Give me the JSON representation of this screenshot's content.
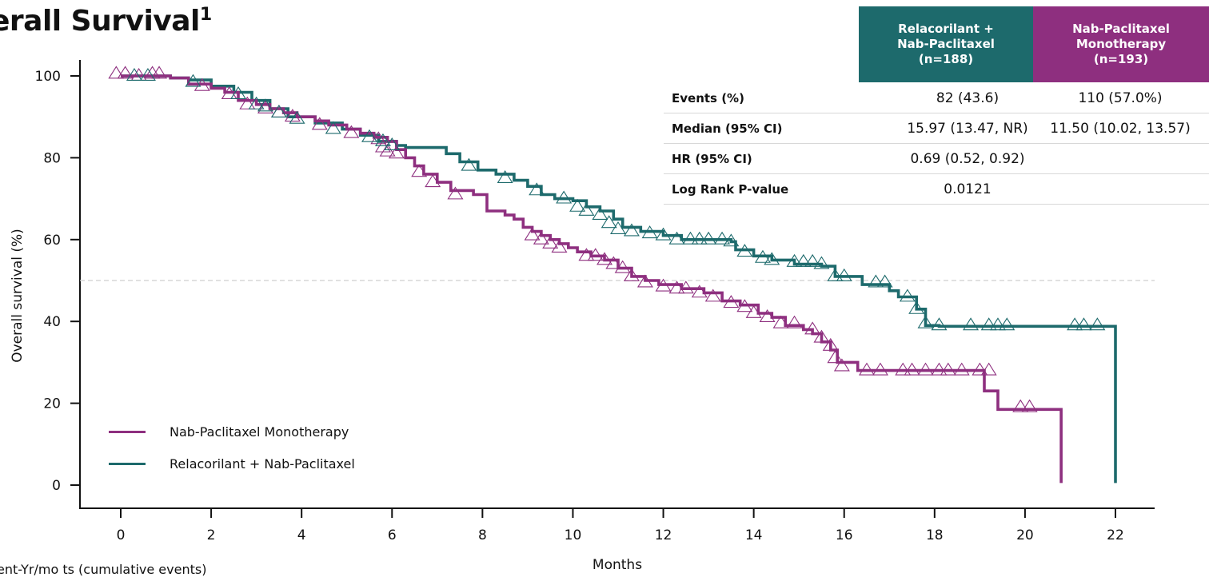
{
  "title": "erall Survival",
  "title_sup": "1",
  "footnote": "ent-Yr/mo ts (cumulative events)",
  "table": {
    "headers": [
      {
        "label": "Relacorilant +\nNab-Paclitaxel\n(n=188)",
        "color": "#1d6a6c"
      },
      {
        "label": "Nab-Paclitaxel\nMonotherapy\n(n=193)",
        "color": "#8e2f7f"
      }
    ],
    "rows": [
      {
        "label": "Events (%)",
        "v1": "82 (43.6)",
        "v2": "110 (57.0%)"
      },
      {
        "label": "Median (95% CI)",
        "v1": "15.97 (13.47, NR)",
        "v2": "11.50 (10.02, 13.57)"
      },
      {
        "label": "HR (95% CI)",
        "v1": "0.69 (0.52, 0.92)",
        "v2": ""
      },
      {
        "label": "Log Rank P-value",
        "v1": "0.0121",
        "v2": ""
      }
    ]
  },
  "legend": [
    {
      "label": "Nab-Paclitaxel Monotherapy",
      "color": "#8e2f7f"
    },
    {
      "label": "Relacorilant + Nab-Paclitaxel",
      "color": "#1d6a6c"
    }
  ],
  "chart_data": {
    "type": "line",
    "subtype": "kaplan-meier step",
    "xlabel": "Months",
    "ylabel": "Overall survival (%)",
    "xlim": [
      0,
      22
    ],
    "ylim": [
      0,
      100
    ],
    "xticks": [
      0,
      2,
      4,
      6,
      8,
      10,
      12,
      14,
      16,
      18,
      20,
      22
    ],
    "yticks": [
      0,
      20,
      40,
      60,
      80,
      100
    ],
    "reference_line_y": 50,
    "censor_marker": "open triangle",
    "series": [
      {
        "name": "Nab-Paclitaxel Monotherapy",
        "color": "#8e2f7f",
        "steps": [
          [
            0,
            100
          ],
          [
            1.1,
            99.5
          ],
          [
            1.5,
            98
          ],
          [
            2,
            97
          ],
          [
            2.3,
            96
          ],
          [
            2.6,
            94
          ],
          [
            3,
            93
          ],
          [
            3.3,
            92
          ],
          [
            3.6,
            91
          ],
          [
            3.9,
            90
          ],
          [
            4.3,
            89
          ],
          [
            4.6,
            88
          ],
          [
            5,
            87
          ],
          [
            5.3,
            86
          ],
          [
            5.6,
            85
          ],
          [
            5.9,
            84
          ],
          [
            6.1,
            82
          ],
          [
            6.3,
            80
          ],
          [
            6.5,
            78
          ],
          [
            6.7,
            76
          ],
          [
            7,
            74
          ],
          [
            7.3,
            72
          ],
          [
            7.8,
            71
          ],
          [
            8.1,
            67
          ],
          [
            8.5,
            66
          ],
          [
            8.7,
            65
          ],
          [
            8.9,
            63
          ],
          [
            9.1,
            62
          ],
          [
            9.3,
            61
          ],
          [
            9.5,
            60
          ],
          [
            9.7,
            59
          ],
          [
            9.9,
            58
          ],
          [
            10.1,
            57
          ],
          [
            10.4,
            56
          ],
          [
            10.7,
            55
          ],
          [
            11,
            53
          ],
          [
            11.3,
            51
          ],
          [
            11.6,
            50
          ],
          [
            11.9,
            49
          ],
          [
            12.4,
            48
          ],
          [
            12.9,
            47
          ],
          [
            13.3,
            45
          ],
          [
            13.7,
            44
          ],
          [
            14.1,
            42
          ],
          [
            14.4,
            41
          ],
          [
            14.7,
            39
          ],
          [
            15.1,
            38
          ],
          [
            15.3,
            37
          ],
          [
            15.5,
            35
          ],
          [
            15.7,
            33
          ],
          [
            15.85,
            30
          ],
          [
            16.3,
            28
          ],
          [
            19.1,
            28
          ],
          [
            19.1,
            23
          ],
          [
            19.4,
            18.5
          ],
          [
            20.8,
            18.5
          ],
          [
            20.8,
            0.5
          ]
        ],
        "censored": [
          [
            -0.1,
            100.5
          ],
          [
            0.1,
            100.5
          ],
          [
            0.4,
            100
          ],
          [
            0.7,
            100.5
          ],
          [
            0.85,
            100.5
          ],
          [
            1.8,
            97.5
          ],
          [
            2.4,
            95.5
          ],
          [
            2.8,
            93
          ],
          [
            3.2,
            92
          ],
          [
            3.5,
            91
          ],
          [
            3.8,
            90
          ],
          [
            4.4,
            88
          ],
          [
            5.1,
            86
          ],
          [
            5.7,
            84.5
          ],
          [
            5.8,
            82.5
          ],
          [
            5.9,
            81.5
          ],
          [
            6.1,
            81
          ],
          [
            6.6,
            76.5
          ],
          [
            6.9,
            74
          ],
          [
            7.4,
            71
          ],
          [
            9.1,
            61
          ],
          [
            9.3,
            60
          ],
          [
            9.5,
            59
          ],
          [
            9.7,
            58
          ],
          [
            10.3,
            56
          ],
          [
            10.5,
            56
          ],
          [
            10.7,
            55
          ],
          [
            10.9,
            54
          ],
          [
            11.1,
            53
          ],
          [
            11.3,
            51
          ],
          [
            11.6,
            49.5
          ],
          [
            12,
            48.5
          ],
          [
            12.3,
            48
          ],
          [
            12.5,
            48
          ],
          [
            12.8,
            47
          ],
          [
            13.1,
            46
          ],
          [
            13.5,
            44.5
          ],
          [
            13.8,
            43.5
          ],
          [
            14,
            42
          ],
          [
            14.3,
            41
          ],
          [
            14.6,
            39.5
          ],
          [
            14.9,
            39.5
          ],
          [
            15.3,
            38
          ],
          [
            15.5,
            36
          ],
          [
            15.7,
            34
          ],
          [
            15.8,
            31
          ],
          [
            15.95,
            29
          ],
          [
            16.5,
            28
          ],
          [
            16.8,
            28
          ],
          [
            17.3,
            28
          ],
          [
            17.5,
            28
          ],
          [
            17.8,
            28
          ],
          [
            18.1,
            28
          ],
          [
            18.3,
            28
          ],
          [
            18.6,
            28
          ],
          [
            19,
            28
          ],
          [
            19.2,
            28
          ],
          [
            19.9,
            19
          ],
          [
            20.1,
            19
          ]
        ]
      },
      {
        "name": "Relacorilant + Nab-Paclitaxel",
        "color": "#1d6a6c",
        "steps": [
          [
            0,
            100
          ],
          [
            1.1,
            99.5
          ],
          [
            1.5,
            99
          ],
          [
            2,
            97.5
          ],
          [
            2.5,
            96
          ],
          [
            2.9,
            94
          ],
          [
            3.3,
            92
          ],
          [
            3.7,
            90
          ],
          [
            4.3,
            88.5
          ],
          [
            4.9,
            87
          ],
          [
            5.3,
            85.5
          ],
          [
            5.7,
            84
          ],
          [
            6.1,
            83
          ],
          [
            6.3,
            82.5
          ],
          [
            7.2,
            81
          ],
          [
            7.5,
            79
          ],
          [
            7.9,
            77
          ],
          [
            8.3,
            76
          ],
          [
            8.7,
            74.5
          ],
          [
            9,
            73
          ],
          [
            9.3,
            71
          ],
          [
            9.6,
            70
          ],
          [
            10,
            69.5
          ],
          [
            10.3,
            68
          ],
          [
            10.6,
            67
          ],
          [
            10.9,
            65
          ],
          [
            11.1,
            63
          ],
          [
            11.5,
            62
          ],
          [
            12,
            61
          ],
          [
            12.4,
            60
          ],
          [
            13.5,
            59.5
          ],
          [
            13.6,
            57.5
          ],
          [
            14,
            56
          ],
          [
            14.4,
            55
          ],
          [
            14.9,
            54
          ],
          [
            15.5,
            53.5
          ],
          [
            15.8,
            51
          ],
          [
            16.4,
            49
          ],
          [
            17,
            47.5
          ],
          [
            17.2,
            46
          ],
          [
            17.6,
            43
          ],
          [
            17.8,
            39
          ],
          [
            18.1,
            38.8
          ],
          [
            22,
            38.8
          ],
          [
            22,
            0.5
          ]
        ],
        "censored": [
          [
            0.3,
            100
          ],
          [
            0.6,
            100
          ],
          [
            1.6,
            98.5
          ],
          [
            2.6,
            95.5
          ],
          [
            3,
            93
          ],
          [
            3.2,
            92.5
          ],
          [
            3.5,
            91
          ],
          [
            3.9,
            89.5
          ],
          [
            4.7,
            87
          ],
          [
            5.5,
            85
          ],
          [
            5.8,
            84
          ],
          [
            6,
            83
          ],
          [
            7.7,
            78
          ],
          [
            8.5,
            75
          ],
          [
            9.2,
            72
          ],
          [
            9.8,
            70
          ],
          [
            10.1,
            68
          ],
          [
            10.3,
            67
          ],
          [
            10.6,
            66
          ],
          [
            10.8,
            64
          ],
          [
            11,
            62.5
          ],
          [
            11.3,
            62
          ],
          [
            11.7,
            61.5
          ],
          [
            12,
            61
          ],
          [
            12.3,
            60
          ],
          [
            12.6,
            60
          ],
          [
            12.8,
            60
          ],
          [
            13,
            60
          ],
          [
            13.3,
            60
          ],
          [
            13.5,
            59.5
          ],
          [
            13.8,
            57
          ],
          [
            14.2,
            55.5
          ],
          [
            14.4,
            55
          ],
          [
            14.9,
            54.5
          ],
          [
            15.1,
            54.5
          ],
          [
            15.3,
            54.5
          ],
          [
            15.5,
            54
          ],
          [
            15.8,
            51
          ],
          [
            16,
            51
          ],
          [
            16.7,
            49.5
          ],
          [
            16.9,
            49.5
          ],
          [
            17.4,
            46
          ],
          [
            17.6,
            43
          ],
          [
            17.8,
            39.5
          ],
          [
            18.1,
            39
          ],
          [
            18.8,
            39
          ],
          [
            19.2,
            39
          ],
          [
            19.4,
            39
          ],
          [
            19.6,
            39
          ],
          [
            21.1,
            39
          ],
          [
            21.3,
            39
          ],
          [
            21.6,
            39
          ]
        ]
      }
    ]
  }
}
